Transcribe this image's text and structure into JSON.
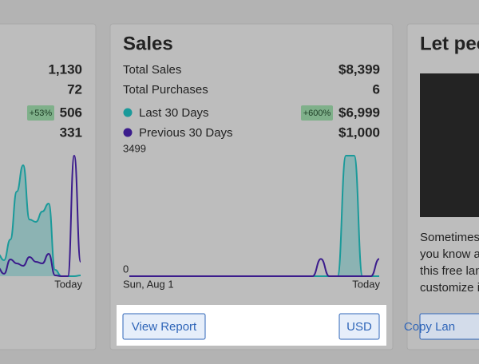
{
  "left_card": {
    "rows": [
      {
        "value": "1,130"
      },
      {
        "value": "72"
      },
      {
        "badge": "+53%",
        "value": "506"
      },
      {
        "value": "331"
      }
    ]
  },
  "sales_card": {
    "title": "Sales",
    "rows": [
      {
        "label": "Total Sales",
        "value": "$8,399"
      },
      {
        "label": "Total Purchases",
        "value": "6"
      },
      {
        "badge": "+600%",
        "value": "$6,999"
      },
      {
        "value": "$1,000"
      }
    ],
    "buttons": [
      "View Report",
      "USD"
    ]
  },
  "right_card": {
    "title": "Let peo",
    "lines": [
      "Sometimes",
      "you know a",
      "this free lan",
      "customize i"
    ],
    "button": "Copy Lan"
  },
  "chart_data": [
    {
      "type": "line",
      "categories": [
        null,
        null,
        null,
        null,
        null,
        null,
        null,
        null,
        null,
        null,
        null,
        null,
        null,
        "Today"
      ],
      "ylim": [
        0,
        151
      ],
      "series": [
        {
          "color": "#1a9a9a",
          "values": [
            28,
            20,
            46,
            106,
            139,
            71,
            68,
            81,
            91,
            8,
            0,
            0,
            0,
            1
          ]
        },
        {
          "color": "#3b1c8c",
          "values": [
            11,
            3,
            21,
            16,
            13,
            24,
            18,
            16,
            28,
            1,
            0,
            0,
            151,
            18
          ]
        }
      ]
    },
    {
      "type": "line",
      "categories": [
        "Sun, Aug 1",
        null,
        null,
        null,
        null,
        null,
        null,
        null,
        null,
        null,
        null,
        null,
        null,
        null,
        null,
        null,
        null,
        null,
        null,
        null,
        null,
        null,
        null,
        null,
        null,
        null,
        null,
        null,
        null,
        null,
        "Today"
      ],
      "ylim": [
        0,
        3499
      ],
      "yticks": [
        3499,
        0
      ],
      "series": [
        {
          "name": "Last 30 Days",
          "color": "#1a9a9a",
          "values": [
            0,
            0,
            0,
            0,
            0,
            0,
            0,
            0,
            0,
            0,
            0,
            0,
            0,
            0,
            0,
            0,
            0,
            0,
            0,
            0,
            0,
            0,
            0,
            0,
            0,
            0,
            3499,
            3499,
            0,
            0,
            0
          ]
        },
        {
          "name": "Previous 30 Days",
          "color": "#3b1c8c",
          "values": [
            0,
            0,
            0,
            0,
            0,
            0,
            0,
            0,
            0,
            0,
            0,
            0,
            0,
            0,
            0,
            0,
            0,
            0,
            0,
            0,
            0,
            0,
            0,
            500,
            0,
            0,
            0,
            0,
            0,
            0,
            500
          ]
        }
      ]
    }
  ]
}
